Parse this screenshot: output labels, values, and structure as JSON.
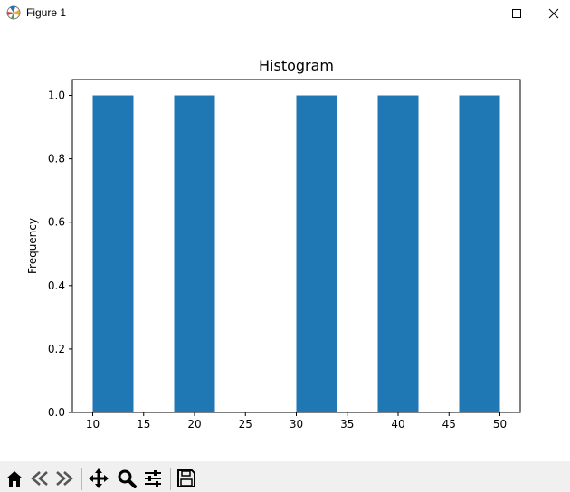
{
  "window": {
    "title": "Figure 1"
  },
  "toolbar": {
    "buttons": [
      {
        "name": "home",
        "icon": "home-icon"
      },
      {
        "name": "back",
        "icon": "back-arrow-icon"
      },
      {
        "name": "forward",
        "icon": "forward-arrow-icon"
      },
      {
        "name": "pan",
        "icon": "move-arrows-icon"
      },
      {
        "name": "zoom",
        "icon": "magnifier-icon"
      },
      {
        "name": "configure",
        "icon": "sliders-icon"
      },
      {
        "name": "save",
        "icon": "floppy-disk-icon"
      }
    ]
  },
  "chart_data": {
    "type": "bar",
    "title": "Histogram",
    "xlabel": "",
    "ylabel": "Frequency",
    "bars": [
      {
        "x0": 10,
        "x1": 14,
        "value": 1.0
      },
      {
        "x0": 18,
        "x1": 22,
        "value": 1.0
      },
      {
        "x0": 30,
        "x1": 34,
        "value": 1.0
      },
      {
        "x0": 38,
        "x1": 42,
        "value": 1.0
      },
      {
        "x0": 46,
        "x1": 50,
        "value": 1.0
      }
    ],
    "xlim": [
      8,
      52
    ],
    "ylim": [
      0,
      1.05
    ],
    "xticks": [
      10,
      15,
      20,
      25,
      30,
      35,
      40,
      45,
      50
    ],
    "yticks": [
      0.0,
      0.2,
      0.4,
      0.6,
      0.8,
      1.0
    ],
    "ytick_labels": [
      "0.0",
      "0.2",
      "0.4",
      "0.6",
      "0.8",
      "1.0"
    ],
    "bar_color": "#1f77b4",
    "grid": false
  }
}
